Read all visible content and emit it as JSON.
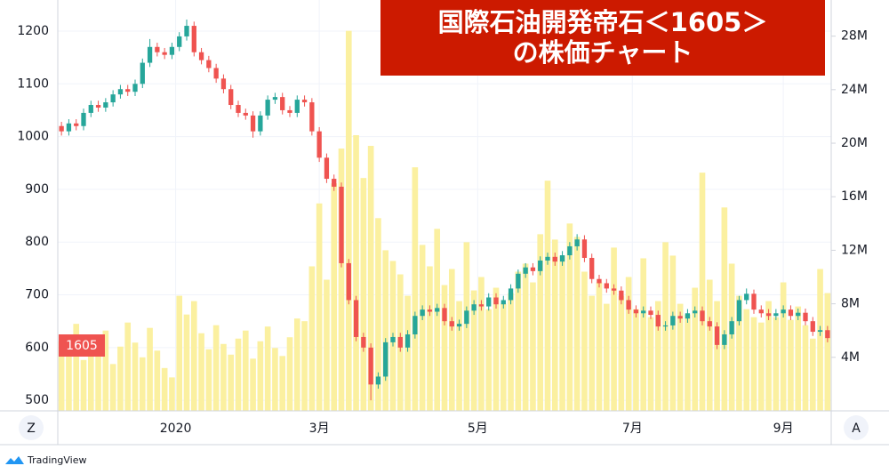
{
  "chart_data": {
    "type": "candlestick",
    "title": [
      "国際石油開発帝石＜1605＞",
      "の株価チャート"
    ],
    "symbol_label": "1605",
    "x": [
      0,
      1,
      2,
      3,
      4,
      5,
      6,
      7,
      8,
      9,
      10,
      11,
      12,
      13,
      14,
      15,
      16,
      17,
      18,
      19,
      20,
      21,
      22,
      23,
      24,
      25,
      26,
      27,
      28,
      29,
      30,
      31,
      32,
      33,
      34,
      35,
      36,
      37,
      38,
      39,
      40,
      41,
      42,
      43,
      44,
      45,
      46,
      47,
      48,
      49,
      50,
      51,
      52,
      53,
      54,
      55,
      56,
      57,
      58,
      59,
      60,
      61,
      62,
      63,
      64,
      65,
      66,
      67,
      68,
      69,
      70,
      71,
      72,
      73,
      74,
      75,
      76,
      77,
      78,
      79,
      80,
      81,
      82,
      83,
      84,
      85,
      86,
      87,
      88,
      89,
      90,
      91,
      92,
      93,
      94,
      95,
      96,
      97,
      98,
      99,
      100,
      101,
      102,
      103,
      104
    ],
    "open": [
      1020,
      1010,
      1025,
      1020,
      1045,
      1060,
      1055,
      1065,
      1080,
      1090,
      1085,
      1100,
      1140,
      1170,
      1160,
      1155,
      1170,
      1190,
      1210,
      1160,
      1145,
      1130,
      1110,
      1090,
      1060,
      1045,
      1040,
      1010,
      1040,
      1070,
      1075,
      1050,
      1045,
      1070,
      1065,
      1010,
      960,
      920,
      905,
      760,
      690,
      620,
      600,
      530,
      545,
      610,
      620,
      600,
      625,
      660,
      672,
      668,
      675,
      650,
      640,
      645,
      670,
      682,
      678,
      695,
      682,
      690,
      712,
      740,
      752,
      745,
      765,
      772,
      763,
      775,
      792,
      805,
      770,
      730,
      722,
      712,
      708,
      690,
      672,
      665,
      670,
      662,
      640,
      642,
      660,
      655,
      665,
      670,
      650,
      640,
      605,
      625,
      650,
      690,
      702,
      672,
      665,
      660,
      665,
      672,
      660,
      666,
      650,
      630,
      633
    ],
    "high": [
      1028,
      1033,
      1033,
      1053,
      1068,
      1068,
      1073,
      1088,
      1098,
      1098,
      1108,
      1148,
      1185,
      1178,
      1168,
      1178,
      1198,
      1222,
      1218,
      1168,
      1153,
      1138,
      1118,
      1098,
      1068,
      1053,
      1048,
      1048,
      1078,
      1083,
      1083,
      1058,
      1078,
      1078,
      1073,
      1018,
      968,
      928,
      913,
      768,
      698,
      628,
      608,
      553,
      618,
      628,
      628,
      633,
      668,
      680,
      680,
      683,
      683,
      658,
      653,
      678,
      690,
      690,
      703,
      703,
      698,
      720,
      748,
      760,
      760,
      773,
      780,
      780,
      783,
      800,
      815,
      813,
      778,
      738,
      730,
      720,
      716,
      698,
      680,
      678,
      678,
      670,
      650,
      668,
      668,
      673,
      678,
      678,
      658,
      648,
      633,
      658,
      698,
      712,
      710,
      680,
      673,
      673,
      680,
      680,
      674,
      674,
      658,
      641,
      641
    ],
    "low": [
      1002,
      1002,
      1012,
      1012,
      1037,
      1047,
      1047,
      1057,
      1072,
      1077,
      1077,
      1092,
      1132,
      1152,
      1147,
      1147,
      1162,
      1182,
      1152,
      1137,
      1122,
      1102,
      1082,
      1052,
      1037,
      1032,
      998,
      1002,
      1032,
      1062,
      1042,
      1037,
      1037,
      1057,
      1002,
      952,
      912,
      897,
      752,
      682,
      612,
      592,
      500,
      522,
      537,
      602,
      592,
      592,
      617,
      652,
      660,
      660,
      642,
      632,
      632,
      637,
      662,
      670,
      670,
      674,
      674,
      682,
      704,
      732,
      737,
      737,
      757,
      755,
      755,
      767,
      784,
      762,
      722,
      714,
      704,
      700,
      682,
      664,
      657,
      657,
      654,
      632,
      632,
      634,
      647,
      647,
      657,
      642,
      632,
      597,
      597,
      617,
      642,
      682,
      664,
      657,
      652,
      652,
      657,
      652,
      652,
      642,
      622,
      622,
      610
    ],
    "close": [
      1010,
      1025,
      1020,
      1045,
      1060,
      1055,
      1065,
      1080,
      1090,
      1085,
      1100,
      1140,
      1170,
      1160,
      1155,
      1170,
      1190,
      1210,
      1160,
      1145,
      1130,
      1110,
      1090,
      1060,
      1045,
      1040,
      1010,
      1040,
      1070,
      1075,
      1050,
      1045,
      1070,
      1065,
      1010,
      960,
      920,
      905,
      760,
      690,
      620,
      600,
      530,
      545,
      610,
      620,
      600,
      625,
      660,
      672,
      668,
      675,
      650,
      640,
      645,
      670,
      682,
      678,
      695,
      682,
      690,
      712,
      740,
      752,
      745,
      765,
      772,
      763,
      775,
      792,
      805,
      770,
      730,
      722,
      712,
      708,
      690,
      672,
      665,
      670,
      662,
      640,
      642,
      660,
      655,
      665,
      670,
      650,
      640,
      605,
      625,
      650,
      690,
      702,
      672,
      665,
      660,
      665,
      672,
      660,
      666,
      650,
      630,
      633,
      618
    ],
    "volume": [
      5200000,
      4100000,
      6500000,
      3800000,
      5000000,
      4400000,
      6000000,
      3500000,
      4800000,
      6600000,
      5100000,
      4000000,
      6200000,
      4500000,
      3200000,
      2500000,
      8600000,
      7200000,
      8200000,
      5800000,
      4600000,
      6400000,
      5000000,
      4200000,
      5400000,
      6000000,
      3900000,
      5200000,
      6300000,
      4700000,
      4100000,
      5500000,
      6900000,
      6700000,
      10800000,
      15500000,
      9800000,
      17000000,
      19600000,
      28400000,
      20600000,
      17400000,
      19800000,
      14400000,
      12000000,
      11200000,
      10200000,
      8600000,
      18200000,
      12400000,
      10800000,
      13600000,
      9400000,
      10600000,
      8200000,
      12600000,
      9000000,
      10000000,
      7600000,
      9200000,
      8000000,
      8800000,
      10400000,
      11000000,
      9600000,
      13200000,
      17200000,
      12800000,
      11600000,
      14000000,
      13000000,
      10400000,
      8600000,
      9600000,
      8000000,
      12200000,
      8600000,
      10000000,
      7600000,
      11400000,
      7000000,
      8200000,
      12600000,
      11600000,
      8000000,
      7200000,
      9200000,
      17800000,
      9800000,
      8200000,
      15200000,
      11000000,
      8600000,
      7600000,
      7000000,
      6600000,
      8200000,
      7000000,
      9600000,
      6800000,
      7800000,
      6400000,
      5400000,
      10600000,
      8800000
    ],
    "up_color": "#26a69a",
    "down_color": "#ef5350",
    "volume_color": "#fbf0a0",
    "xlim": [
      -0.5,
      104.5
    ],
    "xticks": [
      {
        "value": 15.5,
        "label": "2020"
      },
      {
        "value": 35,
        "label": "3月"
      },
      {
        "value": 56.5,
        "label": "5月"
      },
      {
        "value": 77.5,
        "label": "7月"
      },
      {
        "value": 98,
        "label": "9月"
      }
    ],
    "ylim": [
      480,
      1259
    ],
    "yticks": [
      500,
      600,
      700,
      800,
      900,
      1000,
      1100,
      1200
    ],
    "y2lim": [
      0,
      30700000
    ],
    "y2ticks": [
      {
        "value": 4000000,
        "label": "4M"
      },
      {
        "value": 8000000,
        "label": "8M"
      },
      {
        "value": 12000000,
        "label": "12M"
      },
      {
        "value": 16000000,
        "label": "16M"
      },
      {
        "value": 20000000,
        "label": "20M"
      },
      {
        "value": 24000000,
        "label": "24M"
      },
      {
        "value": 28000000,
        "label": "28M"
      }
    ],
    "grid": true
  },
  "ui": {
    "zoom_button": "Z",
    "auto_button": "A",
    "brand": "TradingView"
  }
}
